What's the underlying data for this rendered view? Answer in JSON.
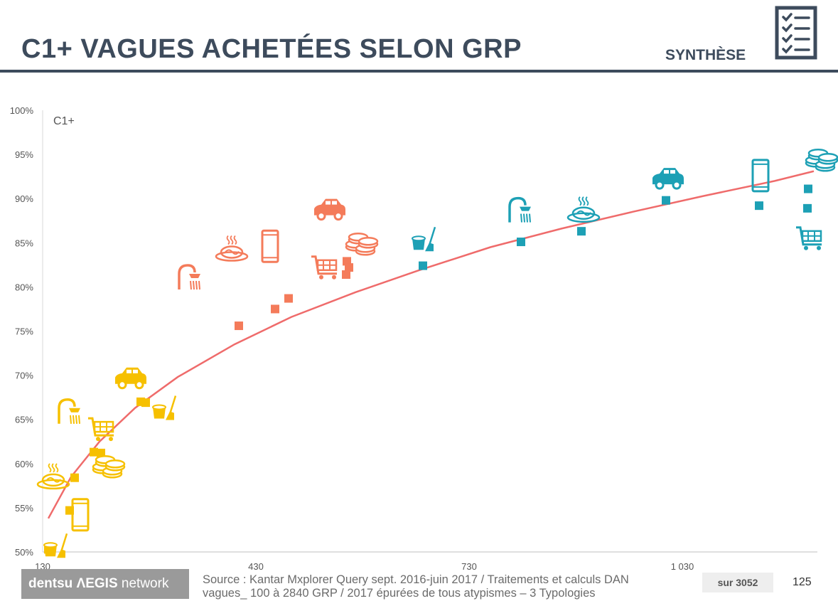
{
  "header": {
    "title": "C1+ VAGUES ACHETÉES SELON GRP",
    "section": "SYNTHÈSE",
    "icon": "checklist-icon"
  },
  "colors": {
    "header": "#3d4b5c",
    "yellow": "#f6c000",
    "orange": "#f47b5a",
    "teal": "#1da0b5",
    "curve": "#ef6b6b",
    "axis_text": "#555555"
  },
  "chart_data": {
    "type": "scatter",
    "ylabel": "C1+",
    "x_ticks": [
      "130",
      "430",
      "730",
      "1 030"
    ],
    "y_ticks": [
      "50%",
      "55%",
      "60%",
      "65%",
      "70%",
      "75%",
      "80%",
      "85%",
      "90%",
      "95%",
      "100%"
    ],
    "xlim": [
      130,
      1220
    ],
    "ylim": [
      50,
      100
    ],
    "points": [
      {
        "x": 138,
        "y": 50.3,
        "group": "yellow"
      },
      {
        "x": 168,
        "y": 54.7,
        "group": "yellow"
      },
      {
        "x": 175,
        "y": 58.4,
        "group": "yellow"
      },
      {
        "x": 202,
        "y": 61.3,
        "group": "yellow"
      },
      {
        "x": 212,
        "y": 61.2,
        "group": "yellow"
      },
      {
        "x": 268,
        "y": 67.0,
        "group": "yellow"
      },
      {
        "x": 275,
        "y": 66.9,
        "group": "yellow"
      },
      {
        "x": 406,
        "y": 75.6,
        "group": "orange"
      },
      {
        "x": 457,
        "y": 77.5,
        "group": "orange"
      },
      {
        "x": 476,
        "y": 78.7,
        "group": "orange"
      },
      {
        "x": 558,
        "y": 82.9,
        "group": "orange"
      },
      {
        "x": 561,
        "y": 82.2,
        "group": "orange"
      },
      {
        "x": 557,
        "y": 81.4,
        "group": "orange"
      },
      {
        "x": 665,
        "y": 82.4,
        "group": "teal"
      },
      {
        "x": 803,
        "y": 85.1,
        "group": "teal"
      },
      {
        "x": 888,
        "y": 86.3,
        "group": "teal"
      },
      {
        "x": 1007,
        "y": 89.8,
        "group": "teal"
      },
      {
        "x": 1138,
        "y": 89.2,
        "group": "teal"
      },
      {
        "x": 1207,
        "y": 91.1,
        "group": "teal"
      },
      {
        "x": 1206,
        "y": 88.9,
        "group": "teal"
      }
    ],
    "icons": [
      {
        "x": 145,
        "y": 58.3,
        "group": "yellow",
        "kind": "food"
      },
      {
        "x": 150,
        "y": 50.3,
        "group": "yellow",
        "kind": "cleaning"
      },
      {
        "x": 183,
        "y": 54.2,
        "group": "yellow",
        "kind": "phone"
      },
      {
        "x": 167,
        "y": 65.8,
        "group": "yellow",
        "kind": "shower"
      },
      {
        "x": 214,
        "y": 64.0,
        "group": "yellow",
        "kind": "cart"
      },
      {
        "x": 222,
        "y": 59.8,
        "group": "yellow",
        "kind": "coins"
      },
      {
        "x": 254,
        "y": 69.5,
        "group": "yellow",
        "kind": "car"
      },
      {
        "x": 303,
        "y": 65.9,
        "group": "yellow",
        "kind": "cleaning"
      },
      {
        "x": 336,
        "y": 81.0,
        "group": "orange",
        "kind": "shower"
      },
      {
        "x": 396,
        "y": 84.1,
        "group": "orange",
        "kind": "food"
      },
      {
        "x": 450,
        "y": 84.6,
        "group": "orange",
        "kind": "phone"
      },
      {
        "x": 534,
        "y": 88.6,
        "group": "orange",
        "kind": "car"
      },
      {
        "x": 528,
        "y": 82.3,
        "group": "orange",
        "kind": "cart"
      },
      {
        "x": 578,
        "y": 85.0,
        "group": "orange",
        "kind": "coins"
      },
      {
        "x": 668,
        "y": 85.0,
        "group": "teal",
        "kind": "cleaning"
      },
      {
        "x": 801,
        "y": 88.6,
        "group": "teal",
        "kind": "shower"
      },
      {
        "x": 891,
        "y": 88.5,
        "group": "teal",
        "kind": "food"
      },
      {
        "x": 1010,
        "y": 92.1,
        "group": "teal",
        "kind": "car"
      },
      {
        "x": 1140,
        "y": 92.6,
        "group": "teal",
        "kind": "phone"
      },
      {
        "x": 1225,
        "y": 94.5,
        "group": "teal",
        "kind": "coins"
      },
      {
        "x": 1210,
        "y": 85.6,
        "group": "teal",
        "kind": "cart"
      }
    ],
    "trend": {
      "type": "log",
      "x": [
        138,
        170,
        210,
        260,
        320,
        400,
        480,
        570,
        660,
        760,
        860,
        960,
        1060,
        1160,
        1215
      ],
      "y": [
        53.8,
        58.5,
        62.5,
        66.3,
        69.8,
        73.5,
        76.6,
        79.4,
        81.9,
        84.5,
        86.6,
        88.5,
        90.3,
        92.0,
        93.1
      ]
    }
  },
  "footer": {
    "logo": "dentsu AEGIS network",
    "logo_bold": "dentsu ",
    "logo_mid": "ΛEGIS",
    "logo_thin": " network",
    "source_line1": "Source :  Kantar Mxplorer Query sept. 2016-juin 2017 / Traitements et calculs DAN",
    "source_line2": "vagues_ 100 à 2840 GRP / 2017 épurées de tous atypismes – 3 Typologies",
    "badge": "sur 3052",
    "page": "125"
  }
}
